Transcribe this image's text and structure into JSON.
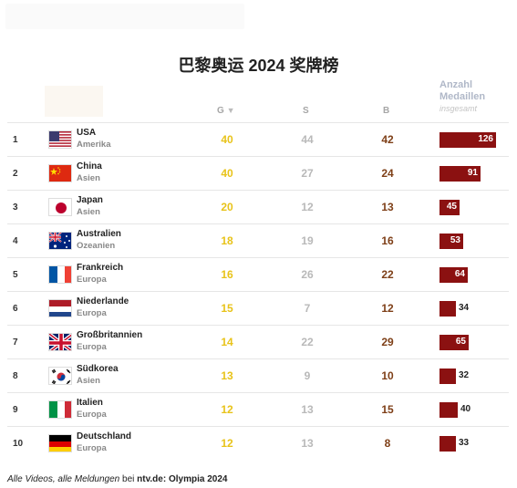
{
  "title": "巴黎奥运 2024 奖牌榜",
  "headers": {
    "gold": "G",
    "gold_sort": "▼",
    "silver": "S",
    "bronze": "B",
    "total_line1": "Anzahl",
    "total_line2": "Medaillen",
    "total_sub": "insgesamt"
  },
  "colors": {
    "gold": "#e8c31a",
    "silver": "#b9b9b9",
    "bronze": "#7e3f17",
    "bar": "#8b1111"
  },
  "rows": [
    {
      "rank": "1",
      "country": "USA",
      "continent": "Amerika",
      "flag": "usa-flag-icon",
      "gold": "40",
      "silver": "44",
      "bronze": "42",
      "total": "126",
      "total_value": 126
    },
    {
      "rank": "2",
      "country": "China",
      "continent": "Asien",
      "flag": "china-flag-icon",
      "gold": "40",
      "silver": "27",
      "bronze": "24",
      "total": "91",
      "total_value": 91
    },
    {
      "rank": "3",
      "country": "Japan",
      "continent": "Asien",
      "flag": "japan-flag-icon",
      "gold": "20",
      "silver": "12",
      "bronze": "13",
      "total": "45",
      "total_value": 45
    },
    {
      "rank": "4",
      "country": "Australien",
      "continent": "Ozeanien",
      "flag": "australia-flag-icon",
      "gold": "18",
      "silver": "19",
      "bronze": "16",
      "total": "53",
      "total_value": 53
    },
    {
      "rank": "5",
      "country": "Frankreich",
      "continent": "Europa",
      "flag": "france-flag-icon",
      "gold": "16",
      "silver": "26",
      "bronze": "22",
      "total": "64",
      "total_value": 64
    },
    {
      "rank": "6",
      "country": "Niederlande",
      "continent": "Europa",
      "flag": "netherlands-flag-icon",
      "gold": "15",
      "silver": "7",
      "bronze": "12",
      "total": "34",
      "total_value": 34
    },
    {
      "rank": "7",
      "country": "Großbritannien",
      "continent": "Europa",
      "flag": "uk-flag-icon",
      "gold": "14",
      "silver": "22",
      "bronze": "29",
      "total": "65",
      "total_value": 65
    },
    {
      "rank": "8",
      "country": "Südkorea",
      "continent": "Asien",
      "flag": "south-korea-flag-icon",
      "gold": "13",
      "silver": "9",
      "bronze": "10",
      "total": "32",
      "total_value": 32
    },
    {
      "rank": "9",
      "country": "Italien",
      "continent": "Europa",
      "flag": "italy-flag-icon",
      "gold": "12",
      "silver": "13",
      "bronze": "15",
      "total": "40",
      "total_value": 40
    },
    {
      "rank": "10",
      "country": "Deutschland",
      "continent": "Europa",
      "flag": "germany-flag-icon",
      "gold": "12",
      "silver": "13",
      "bronze": "8",
      "total": "33",
      "total_value": 33
    }
  ],
  "footer": {
    "italic_text": "Alle Videos, alle Meldungen",
    "mid_text": " bei ",
    "bold_text": "ntv.de: Olympia 2024"
  }
}
